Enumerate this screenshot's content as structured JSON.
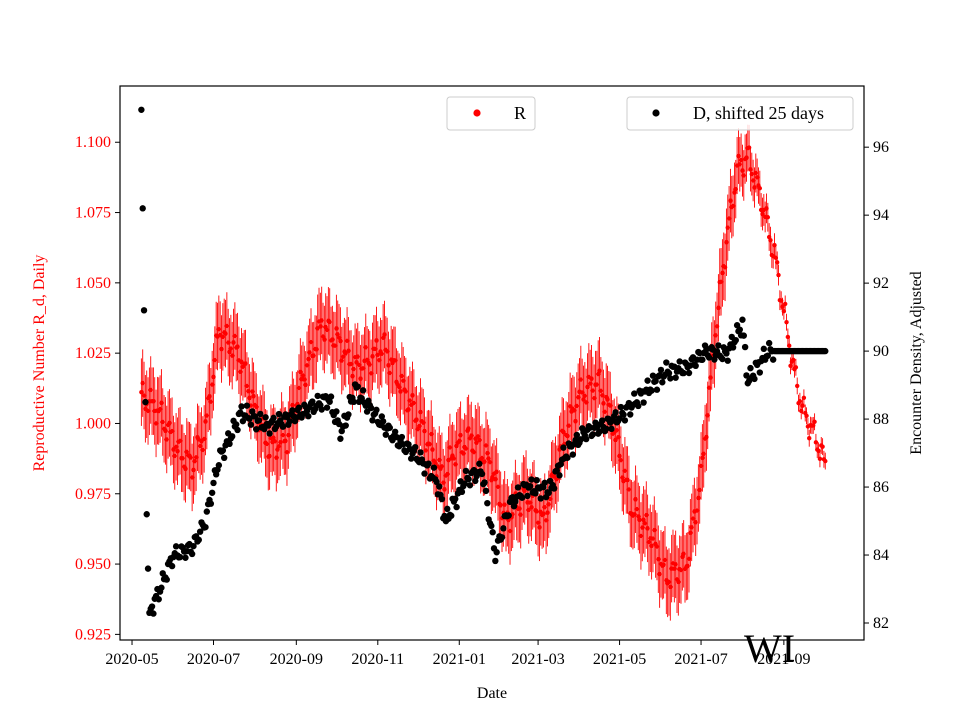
{
  "chart_data": {
    "type": "scatter",
    "state_label": "WI",
    "xlabel": "Date",
    "ylabel_left": "Reproductive Number R_d, Daily",
    "ylabel_right": "Encounter Density, Adjusted",
    "x_range": [
      "2020-04-22",
      "2021-10-31"
    ],
    "ylim_left": [
      0.923,
      1.12
    ],
    "ylim_right": [
      81.5,
      97.8
    ],
    "x_ticks": [
      "2020-05",
      "2020-07",
      "2020-09",
      "2020-11",
      "2021-01",
      "2021-03",
      "2021-05",
      "2021-07",
      "2021-09"
    ],
    "y_ticks_left": [
      "0.925",
      "0.950",
      "0.975",
      "1.000",
      "1.025",
      "1.050",
      "1.075",
      "1.100"
    ],
    "y_ticks_right": [
      "82",
      "84",
      "86",
      "88",
      "90",
      "92",
      "94",
      "96"
    ],
    "colors": {
      "r_series": "#ff0000",
      "d_series": "#000000"
    },
    "legend": [
      {
        "label": "R",
        "color": "#ff0000",
        "position": "upper-center"
      },
      {
        "label": "D, shifted 25 days",
        "color": "#000000",
        "position": "upper-right"
      }
    ],
    "series": [
      {
        "name": "R",
        "axis": "left",
        "marker": "dot-with-errorbars",
        "keypoints": [
          [
            "2020-05-08",
            1.01
          ],
          [
            "2020-05-20",
            1.005
          ],
          [
            "2020-06-05",
            0.99
          ],
          [
            "2020-06-15",
            0.985
          ],
          [
            "2020-06-25",
            0.998
          ],
          [
            "2020-07-05",
            1.033
          ],
          [
            "2020-07-20",
            1.025
          ],
          [
            "2020-08-01",
            1.005
          ],
          [
            "2020-08-12",
            0.991
          ],
          [
            "2020-08-25",
            0.995
          ],
          [
            "2020-09-05",
            1.015
          ],
          [
            "2020-09-20",
            1.035
          ],
          [
            "2020-10-01",
            1.03
          ],
          [
            "2020-10-15",
            1.02
          ],
          [
            "2020-10-25",
            1.022
          ],
          [
            "2020-11-05",
            1.028
          ],
          [
            "2020-11-20",
            1.012
          ],
          [
            "2020-12-05",
            0.998
          ],
          [
            "2020-12-20",
            0.98
          ],
          [
            "2020-12-28",
            0.99
          ],
          [
            "2021-01-10",
            0.995
          ],
          [
            "2021-01-25",
            0.985
          ],
          [
            "2021-02-05",
            0.965
          ],
          [
            "2021-02-20",
            0.975
          ],
          [
            "2021-03-05",
            0.965
          ],
          [
            "2021-03-20",
            0.995
          ],
          [
            "2021-04-01",
            1.01
          ],
          [
            "2021-04-15",
            1.015
          ],
          [
            "2021-04-25",
            1.002
          ],
          [
            "2021-05-10",
            0.97
          ],
          [
            "2021-05-25",
            0.96
          ],
          [
            "2021-06-05",
            0.945
          ],
          [
            "2021-06-20",
            0.95
          ],
          [
            "2021-07-01",
            0.98
          ],
          [
            "2021-07-10",
            1.025
          ],
          [
            "2021-07-20",
            1.065
          ],
          [
            "2021-07-28",
            1.09
          ],
          [
            "2021-08-05",
            1.095
          ],
          [
            "2021-08-15",
            1.08
          ],
          [
            "2021-08-25",
            1.06
          ],
          [
            "2021-09-01",
            1.04
          ],
          [
            "2021-09-08",
            1.02
          ],
          [
            "2021-09-15",
            1.005
          ],
          [
            "2021-09-25",
            0.995
          ],
          [
            "2021-10-02",
            0.985
          ]
        ],
        "error_halfwidth_keypoints": [
          [
            "2020-05-08",
            0.012
          ],
          [
            "2021-06-20",
            0.012
          ],
          [
            "2021-07-20",
            0.012
          ],
          [
            "2021-08-15",
            0.006
          ],
          [
            "2021-09-01",
            0.003
          ],
          [
            "2021-10-02",
            0.003
          ]
        ]
      },
      {
        "name": "D, shifted 25 days",
        "axis": "right",
        "marker": "dot",
        "keypoints": [
          [
            "2020-05-08",
            97.1
          ],
          [
            "2020-05-09",
            94.2
          ],
          [
            "2020-05-10",
            91.2
          ],
          [
            "2020-05-11",
            88.5
          ],
          [
            "2020-05-12",
            85.2
          ],
          [
            "2020-05-13",
            83.6
          ],
          [
            "2020-05-14",
            82.3
          ],
          [
            "2020-05-20",
            82.8
          ],
          [
            "2020-06-01",
            84.0
          ],
          [
            "2020-06-15",
            84.2
          ],
          [
            "2020-06-25",
            85.0
          ],
          [
            "2020-07-05",
            86.8
          ],
          [
            "2020-07-15",
            87.6
          ],
          [
            "2020-07-22",
            88.2
          ],
          [
            "2020-08-10",
            87.8
          ],
          [
            "2020-08-25",
            88.0
          ],
          [
            "2020-09-10",
            88.3
          ],
          [
            "2020-09-25",
            88.6
          ],
          [
            "2020-10-05",
            87.6
          ],
          [
            "2020-10-15",
            88.9
          ],
          [
            "2020-10-30",
            88.1
          ],
          [
            "2020-11-15",
            87.4
          ],
          [
            "2020-12-01",
            86.9
          ],
          [
            "2020-12-15",
            86.2
          ],
          [
            "2020-12-22",
            85.0
          ],
          [
            "2021-01-05",
            86.2
          ],
          [
            "2021-01-18",
            86.5
          ],
          [
            "2021-01-28",
            84.0
          ],
          [
            "2021-02-08",
            85.5
          ],
          [
            "2021-02-20",
            86.0
          ],
          [
            "2021-03-10",
            85.9
          ],
          [
            "2021-03-20",
            86.9
          ],
          [
            "2021-04-05",
            87.6
          ],
          [
            "2021-04-20",
            87.8
          ],
          [
            "2021-05-05",
            88.2
          ],
          [
            "2021-05-20",
            88.8
          ],
          [
            "2021-06-05",
            89.4
          ],
          [
            "2021-06-20",
            89.5
          ],
          [
            "2021-07-05",
            90.0
          ],
          [
            "2021-07-20",
            89.9
          ],
          [
            "2021-08-01",
            90.8
          ],
          [
            "2021-08-05",
            89.1
          ],
          [
            "2021-08-20",
            90.0
          ],
          [
            "2021-09-01",
            90.0
          ],
          [
            "2021-10-02",
            90.0
          ]
        ]
      }
    ]
  }
}
